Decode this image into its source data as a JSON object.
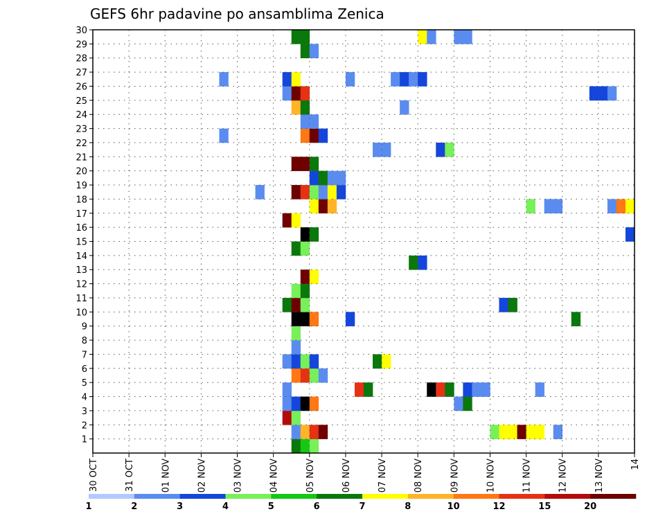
{
  "chart_data": {
    "type": "heatmap",
    "title": "GEFS 6hr padavine po ansamblima Zenica",
    "y_tick_labels": [
      "1",
      "2",
      "3",
      "4",
      "5",
      "6",
      "7",
      "8",
      "9",
      "10",
      "11",
      "12",
      "13",
      "14",
      "15",
      "16",
      "17",
      "18",
      "19",
      "20",
      "21",
      "22",
      "23",
      "24",
      "25",
      "26",
      "27",
      "28",
      "29",
      "30"
    ],
    "x_tick_labels": [
      "30 OCT",
      "31 OCT",
      "01 NOV",
      "02 NOV",
      "03 NOV",
      "04 NOV",
      "05 NOV",
      "06 NOV",
      "07 NOV",
      "08 NOV",
      "09 NOV",
      "10 NOV",
      "11 NOV",
      "12 NOV",
      "13 NOV",
      "14"
    ],
    "ylim": [
      0,
      30
    ],
    "xlim": [
      0,
      60
    ],
    "time_step": "6hr",
    "grid": true,
    "legend": {
      "placement": "bottom",
      "labels": [
        "1",
        "2",
        "3",
        "4",
        "5",
        "6",
        "7",
        "8",
        "10",
        "12",
        "15",
        "20"
      ],
      "colors": [
        "#b4c8ff",
        "#5a8cf0",
        "#1446dc",
        "#78f05a",
        "#14c814",
        "#0a780a",
        "#ffff00",
        "#ffb428",
        "#ff7814",
        "#e63214",
        "#b40a0a",
        "#6e0000"
      ]
    },
    "cells": [
      [
        22,
        0,
        5
      ],
      [
        23,
        0,
        4
      ],
      [
        24,
        0,
        3
      ],
      [
        22,
        1,
        1
      ],
      [
        23,
        1,
        7
      ],
      [
        24,
        1,
        9
      ],
      [
        25,
        1,
        11
      ],
      [
        44,
        1,
        3
      ],
      [
        45,
        1,
        6
      ],
      [
        46,
        1,
        6
      ],
      [
        47,
        1,
        11
      ],
      [
        48,
        1,
        6
      ],
      [
        49,
        1,
        6
      ],
      [
        51,
        1,
        1
      ],
      [
        21,
        2,
        10
      ],
      [
        22,
        2,
        3
      ],
      [
        21,
        3,
        1
      ],
      [
        22,
        3,
        2
      ],
      [
        23,
        3,
        12
      ],
      [
        24,
        3,
        8
      ],
      [
        40,
        3,
        1
      ],
      [
        41,
        3,
        5
      ],
      [
        21,
        4,
        1
      ],
      [
        29,
        4,
        9
      ],
      [
        30,
        4,
        5
      ],
      [
        37,
        4,
        12
      ],
      [
        38,
        4,
        9
      ],
      [
        39,
        4,
        5
      ],
      [
        41,
        4,
        2
      ],
      [
        42,
        4,
        1
      ],
      [
        43,
        4,
        1
      ],
      [
        49,
        4,
        1
      ],
      [
        22,
        5,
        8
      ],
      [
        23,
        5,
        9
      ],
      [
        24,
        5,
        3
      ],
      [
        25,
        5,
        1
      ],
      [
        21,
        6,
        1
      ],
      [
        22,
        6,
        2
      ],
      [
        23,
        6,
        3
      ],
      [
        24,
        6,
        2
      ],
      [
        31,
        6,
        5
      ],
      [
        32,
        6,
        6
      ],
      [
        22,
        7,
        1
      ],
      [
        22,
        8,
        3
      ],
      [
        22,
        9,
        12
      ],
      [
        23,
        9,
        12
      ],
      [
        24,
        9,
        8
      ],
      [
        28,
        9,
        2
      ],
      [
        53,
        9,
        5
      ],
      [
        21,
        10,
        5
      ],
      [
        22,
        10,
        11
      ],
      [
        23,
        10,
        3
      ],
      [
        45,
        10,
        2
      ],
      [
        46,
        10,
        5
      ],
      [
        22,
        11,
        3
      ],
      [
        23,
        11,
        5
      ],
      [
        23,
        12,
        11
      ],
      [
        24,
        12,
        6
      ],
      [
        22,
        14,
        5
      ],
      [
        23,
        14,
        3
      ],
      [
        35,
        13,
        5
      ],
      [
        36,
        13,
        2
      ],
      [
        23,
        15,
        12
      ],
      [
        24,
        15,
        5
      ],
      [
        59,
        15,
        2
      ],
      [
        21,
        16,
        11
      ],
      [
        22,
        16,
        6
      ],
      [
        24,
        17,
        6
      ],
      [
        25,
        17,
        11
      ],
      [
        26,
        17,
        7
      ],
      [
        48,
        17,
        3
      ],
      [
        50,
        17,
        1
      ],
      [
        51,
        17,
        1
      ],
      [
        57,
        17,
        1
      ],
      [
        58,
        17,
        8
      ],
      [
        59,
        17,
        6
      ],
      [
        18,
        18,
        1
      ],
      [
        22,
        18,
        11
      ],
      [
        23,
        18,
        9
      ],
      [
        24,
        18,
        3
      ],
      [
        25,
        18,
        1
      ],
      [
        26,
        18,
        6
      ],
      [
        27,
        18,
        2
      ],
      [
        24,
        19,
        2
      ],
      [
        25,
        19,
        5
      ],
      [
        26,
        19,
        1
      ],
      [
        27,
        19,
        1
      ],
      [
        22,
        20,
        11
      ],
      [
        23,
        20,
        11
      ],
      [
        24,
        20,
        5
      ],
      [
        31,
        21,
        1
      ],
      [
        32,
        21,
        1
      ],
      [
        38,
        21,
        2
      ],
      [
        39,
        21,
        3
      ],
      [
        14,
        22,
        1
      ],
      [
        23,
        22,
        8
      ],
      [
        24,
        22,
        11
      ],
      [
        25,
        22,
        2
      ],
      [
        23,
        23,
        1
      ],
      [
        24,
        23,
        1
      ],
      [
        22,
        24,
        7
      ],
      [
        23,
        24,
        5
      ],
      [
        34,
        24,
        1
      ],
      [
        21,
        25,
        1
      ],
      [
        22,
        25,
        11
      ],
      [
        23,
        25,
        9
      ],
      [
        55,
        25,
        2
      ],
      [
        56,
        25,
        2
      ],
      [
        57,
        25,
        1
      ],
      [
        14,
        26,
        1
      ],
      [
        21,
        26,
        2
      ],
      [
        22,
        26,
        6
      ],
      [
        28,
        26,
        1
      ],
      [
        33,
        26,
        1
      ],
      [
        34,
        26,
        2
      ],
      [
        35,
        26,
        1
      ],
      [
        36,
        26,
        2
      ],
      [
        23,
        28,
        5
      ],
      [
        24,
        28,
        1
      ],
      [
        22,
        29,
        5
      ],
      [
        23,
        29,
        5
      ],
      [
        36,
        29,
        6
      ],
      [
        37,
        29,
        1
      ],
      [
        40,
        29,
        1
      ],
      [
        41,
        29,
        1
      ]
    ]
  }
}
